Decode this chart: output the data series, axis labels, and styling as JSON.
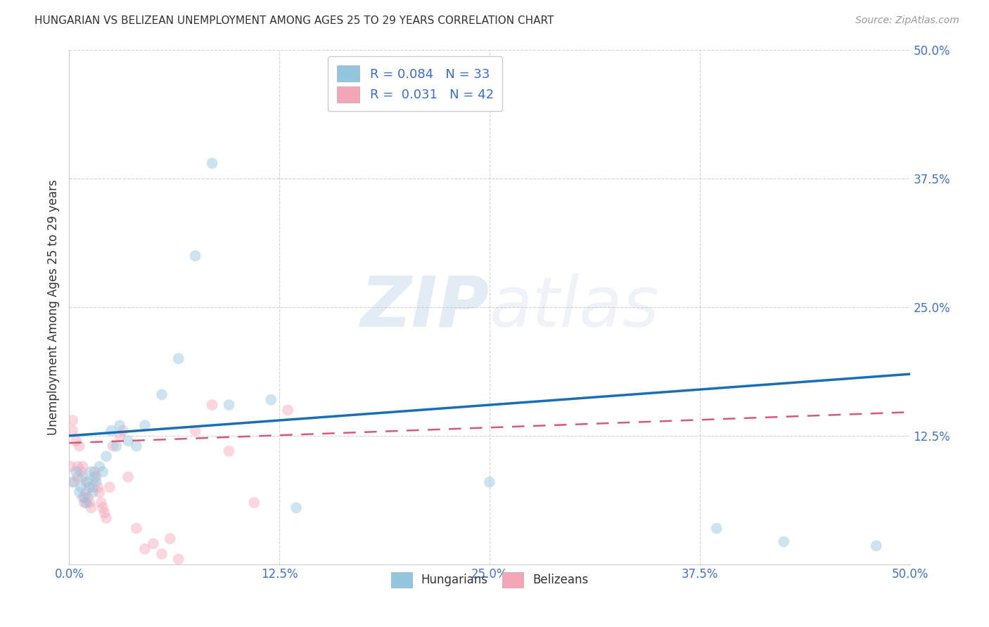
{
  "title": "HUNGARIAN VS BELIZEAN UNEMPLOYMENT AMONG AGES 25 TO 29 YEARS CORRELATION CHART",
  "source": "Source: ZipAtlas.com",
  "ylabel": "Unemployment Among Ages 25 to 29 years",
  "xlim": [
    0.0,
    0.5
  ],
  "ylim": [
    0.0,
    0.5
  ],
  "xticks": [
    0.0,
    0.125,
    0.25,
    0.375,
    0.5
  ],
  "yticks": [
    0.125,
    0.25,
    0.375,
    0.5
  ],
  "xticklabels": [
    "0.0%",
    "12.5%",
    "25.0%",
    "37.5%",
    "50.0%"
  ],
  "yticklabels": [
    "12.5%",
    "25.0%",
    "37.5%",
    "50.0%"
  ],
  "tick_color": "#4472c4",
  "hungarian_color": "#92c5de",
  "belizean_color": "#f4a6b8",
  "hungarian_line_color": "#1a6eb5",
  "belizean_line_color": "#d45a7a",
  "R_hungarian": 0.084,
  "N_hungarian": 33,
  "R_belizean": 0.031,
  "N_belizean": 42,
  "hun_line_x0": 0.0,
  "hun_line_y0": 0.125,
  "hun_line_x1": 0.5,
  "hun_line_y1": 0.185,
  "bel_line_x0": 0.0,
  "bel_line_y0": 0.118,
  "bel_line_x1": 0.5,
  "bel_line_y1": 0.148,
  "hungarian_x": [
    0.002,
    0.004,
    0.006,
    0.007,
    0.008,
    0.009,
    0.01,
    0.011,
    0.012,
    0.013,
    0.014,
    0.015,
    0.016,
    0.018,
    0.02,
    0.022,
    0.025,
    0.028,
    0.03,
    0.035,
    0.04,
    0.045,
    0.055,
    0.065,
    0.075,
    0.085,
    0.095,
    0.12,
    0.135,
    0.25,
    0.385,
    0.425,
    0.48
  ],
  "hungarian_y": [
    0.08,
    0.09,
    0.07,
    0.075,
    0.085,
    0.065,
    0.06,
    0.08,
    0.075,
    0.09,
    0.07,
    0.085,
    0.08,
    0.095,
    0.09,
    0.105,
    0.13,
    0.115,
    0.135,
    0.12,
    0.115,
    0.135,
    0.165,
    0.2,
    0.3,
    0.39,
    0.155,
    0.16,
    0.055,
    0.08,
    0.035,
    0.022,
    0.018
  ],
  "belizean_x": [
    0.001,
    0.002,
    0.002,
    0.003,
    0.004,
    0.005,
    0.005,
    0.006,
    0.007,
    0.008,
    0.008,
    0.009,
    0.01,
    0.01,
    0.011,
    0.012,
    0.013,
    0.014,
    0.015,
    0.016,
    0.017,
    0.018,
    0.019,
    0.02,
    0.021,
    0.022,
    0.024,
    0.026,
    0.03,
    0.032,
    0.035,
    0.04,
    0.045,
    0.05,
    0.055,
    0.06,
    0.065,
    0.075,
    0.085,
    0.095,
    0.11,
    0.13
  ],
  "belizean_y": [
    0.095,
    0.13,
    0.14,
    0.08,
    0.12,
    0.085,
    0.095,
    0.115,
    0.09,
    0.095,
    0.065,
    0.06,
    0.07,
    0.08,
    0.065,
    0.06,
    0.055,
    0.075,
    0.09,
    0.085,
    0.075,
    0.07,
    0.06,
    0.055,
    0.05,
    0.045,
    0.075,
    0.115,
    0.125,
    0.13,
    0.085,
    0.035,
    0.015,
    0.02,
    0.01,
    0.025,
    0.005,
    0.13,
    0.155,
    0.11,
    0.06,
    0.15
  ],
  "marker_size": 130,
  "marker_alpha": 0.45,
  "watermark_zip": "ZIP",
  "watermark_atlas": "atlas",
  "background_color": "#ffffff",
  "grid_color": "#c8c8c8"
}
